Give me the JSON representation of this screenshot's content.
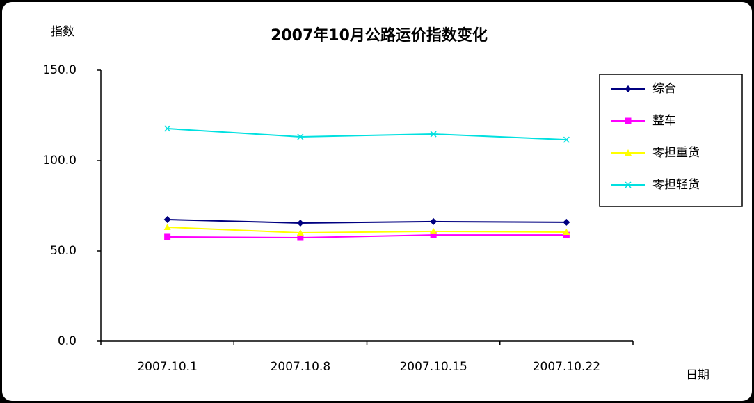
{
  "chart_data": {
    "type": "line",
    "title": "2007年10月公路运价指数变化",
    "y_label": "指数",
    "x_label": "日期",
    "categories": [
      "2007.10.1",
      "2007.10.8",
      "2007.10.15",
      "2007.10.22"
    ],
    "series": [
      {
        "name": "综合",
        "color": "#000080",
        "marker": "diamond",
        "values": [
          67.3,
          65.4,
          66.2,
          65.8
        ]
      },
      {
        "name": "整车",
        "color": "#ff00ff",
        "marker": "square",
        "values": [
          57.7,
          57.3,
          58.8,
          58.8
        ]
      },
      {
        "name": "零担重货",
        "color": "#ffff00",
        "marker": "triangle",
        "values": [
          63.1,
          60.0,
          60.8,
          60.4
        ]
      },
      {
        "name": "零担轻货",
        "color": "#00e0e0",
        "marker": "x",
        "values": [
          117.7,
          113.1,
          114.6,
          111.5
        ]
      }
    ],
    "ylim": [
      0,
      150
    ],
    "yticks": [
      {
        "value": 0,
        "label": "0.0"
      },
      {
        "value": 50,
        "label": "50.0"
      },
      {
        "value": 100,
        "label": "100.0"
      },
      {
        "value": 150,
        "label": "150.0"
      }
    ],
    "grid": false,
    "legend": "right"
  }
}
